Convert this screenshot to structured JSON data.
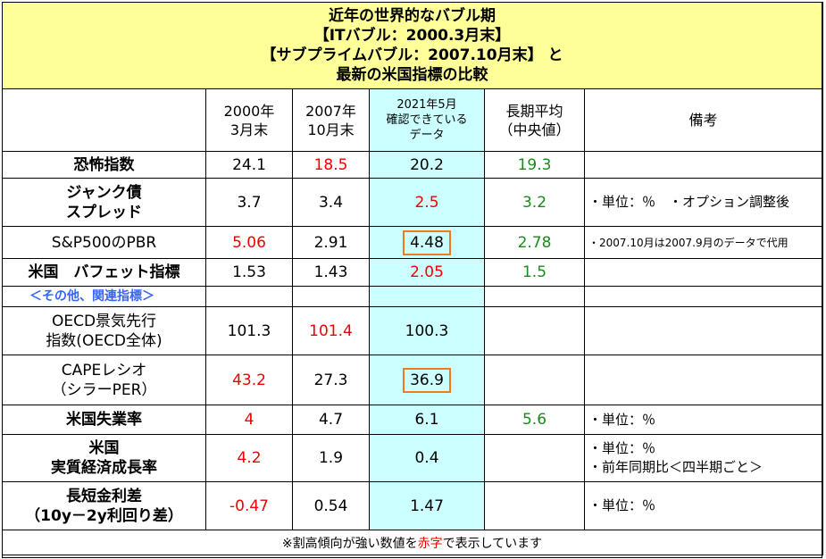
{
  "title": {
    "line1": "近年の世界的なバブル期",
    "line2": "【ITバブル：2000.3月末】",
    "line3": "【サブプライムバブル：2007.10月末】 と",
    "line4": "最新の米国指標の比較"
  },
  "headers": {
    "col1_l1": "2000年",
    "col1_l2": "3月末",
    "col2_l1": "2007年",
    "col2_l2": "10月末",
    "col3_l1": "2021年5月",
    "col3_l2": "確認できている",
    "col3_l3": "データ",
    "col4_l1": "長期平均",
    "col4_l2": "（中央値）",
    "col5": "備考"
  },
  "rows": [
    {
      "label_l1": "恐怖指数",
      "label_l2": "",
      "v2000": "24.1",
      "v2007": "18.5",
      "v2021": "20.2",
      "avg": "19.3",
      "note_l1": "",
      "note_l2": ""
    },
    {
      "label_l1": "ジャンク債",
      "label_l2": "スプレッド",
      "v2000": "3.7",
      "v2007": "3.4",
      "v2021": "2.5",
      "avg": "3.2",
      "note_l1": "・単位：％　・オプション調整後",
      "note_l2": ""
    },
    {
      "label_l1": "S&P500のPBR",
      "label_l2": "",
      "v2000": "5.06",
      "v2007": "2.91",
      "v2021": "4.48",
      "avg": "2.78",
      "note_l1": "・2007.10月は2007.9月のデータで代用",
      "note_l2": ""
    },
    {
      "label_l1": "米国　バフェット指標",
      "label_l2": "",
      "v2000": "1.53",
      "v2007": "1.43",
      "v2021": "2.05",
      "avg": "1.5",
      "note_l1": "",
      "note_l2": ""
    },
    {
      "label_l1": "OECD景気先行",
      "label_l2": "指数(OECD全体)",
      "v2000": "101.3",
      "v2007": "101.4",
      "v2021": "100.3",
      "avg": "",
      "note_l1": "",
      "note_l2": ""
    },
    {
      "label_l1": "CAPEレシオ",
      "label_l2": "（シラーPER）",
      "v2000": "43.2",
      "v2007": "27.3",
      "v2021": "36.9",
      "avg": "",
      "note_l1": "",
      "note_l2": ""
    },
    {
      "label_l1": "米国失業率",
      "label_l2": "",
      "v2000": "4",
      "v2007": "4.7",
      "v2021": "6.1",
      "avg": "5.6",
      "note_l1": "・単位：％",
      "note_l2": ""
    },
    {
      "label_l1": "米国",
      "label_l2": "実質経済成長率",
      "v2000": "4.2",
      "v2007": "1.9",
      "v2021": "0.4",
      "avg": "",
      "note_l1": "・単位：％",
      "note_l2": "・前年同期比＜四半期ごと＞"
    },
    {
      "label_l1": "長短金利差",
      "label_l2": "（10y－2y利回り差）",
      "v2000": "-0.47",
      "v2007": "0.54",
      "v2021": "1.47",
      "avg": "",
      "note_l1": "・単位：％",
      "note_l2": ""
    }
  ],
  "subheader": "＜その他、関連指標＞",
  "footer": {
    "before": "※割高傾向が強い数値を",
    "highlight": "赤字",
    "after": "で表示しています"
  },
  "colors": {
    "title_bg": "#ffff99",
    "highlight_col_bg": "#ccffff",
    "red_value": "#ee0000",
    "green_value": "#1a8a1a",
    "box_border": "#f07a1e",
    "subheader_text": "#3366ff"
  }
}
